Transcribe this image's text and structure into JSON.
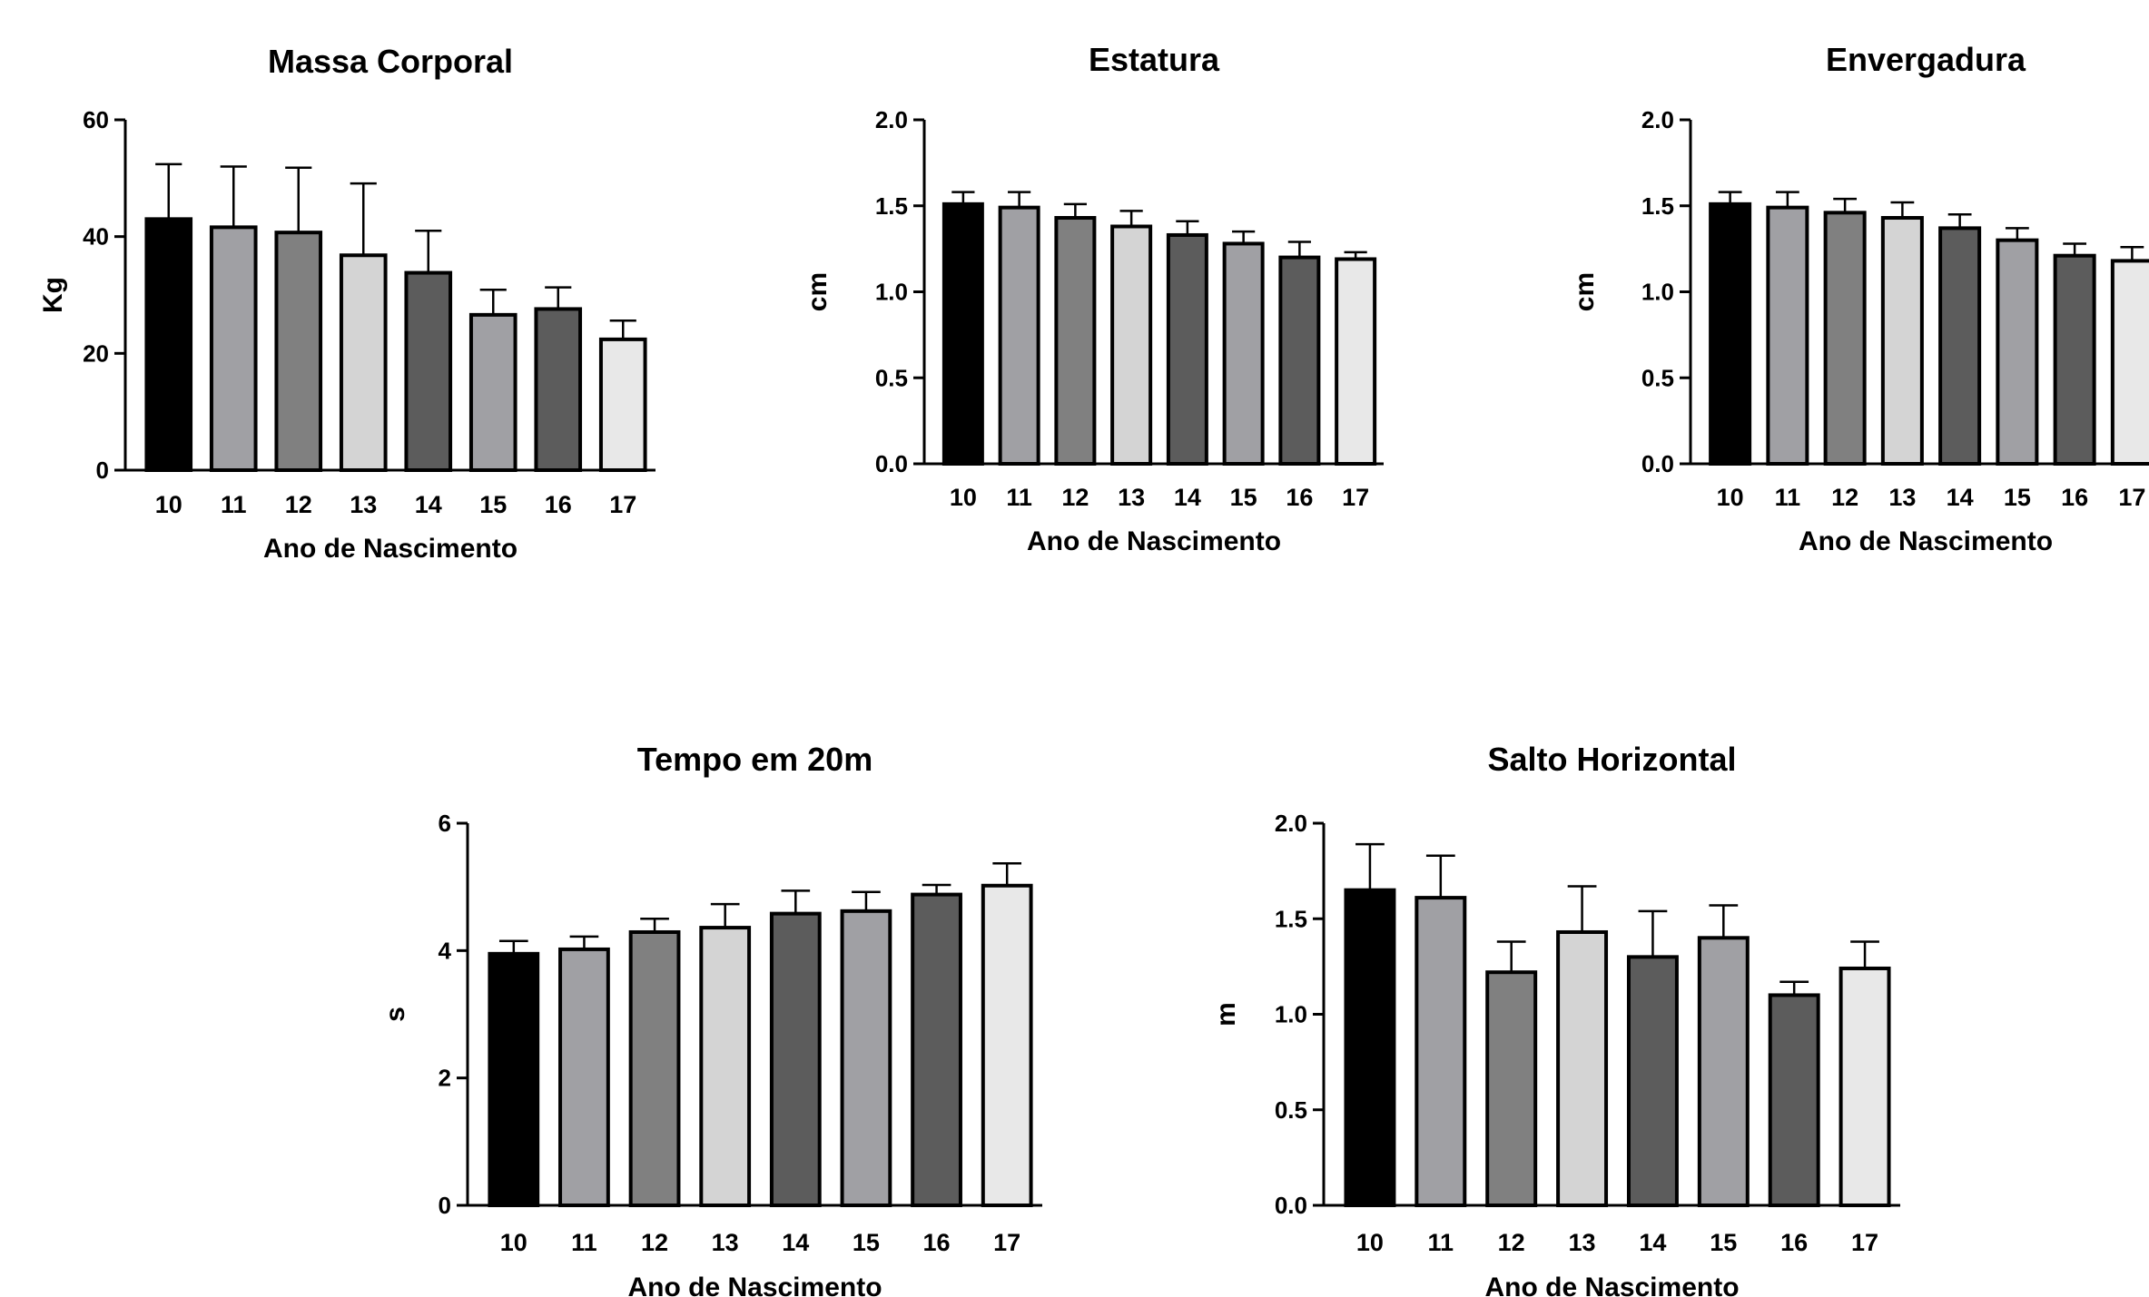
{
  "chart_data": [
    {
      "type": "bar",
      "title": "Massa Corporal",
      "xlabel": "Ano de Nascimento",
      "ylabel": "Kg",
      "ylim": [
        0,
        60
      ],
      "yticks": [
        "0",
        "20",
        "40",
        "60"
      ],
      "categories": [
        "10",
        "11",
        "12",
        "13",
        "14",
        "15",
        "16",
        "17"
      ],
      "values": [
        43,
        41.6,
        40.7,
        36.8,
        33.8,
        26.6,
        27.6,
        22.4
      ],
      "errors": [
        9.4,
        10.4,
        11.1,
        12.3,
        7.2,
        4.3,
        3.7,
        3.2
      ],
      "fills": [
        "#000000",
        "#a0a0a4",
        "#808080",
        "#d4d4d4",
        "#5c5c5c",
        "#a0a0a4",
        "#5c5c5c",
        "#e8e8e8"
      ]
    },
    {
      "type": "bar",
      "title": "Estatura",
      "xlabel": "Ano de Nascimento",
      "ylabel": "cm",
      "ylim": [
        0,
        2.0
      ],
      "yticks": [
        "0.0",
        "0.5",
        "1.0",
        "1.5",
        "2.0"
      ],
      "categories": [
        "10",
        "11",
        "12",
        "13",
        "14",
        "15",
        "16",
        "17"
      ],
      "values": [
        1.51,
        1.49,
        1.43,
        1.38,
        1.33,
        1.28,
        1.2,
        1.19
      ],
      "errors": [
        0.07,
        0.09,
        0.08,
        0.09,
        0.08,
        0.07,
        0.09,
        0.04
      ],
      "fills": [
        "#000000",
        "#a0a0a4",
        "#808080",
        "#d4d4d4",
        "#5c5c5c",
        "#a0a0a4",
        "#5c5c5c",
        "#e8e8e8"
      ]
    },
    {
      "type": "bar",
      "title": "Envergadura",
      "xlabel": "Ano de Nascimento",
      "ylabel": "cm",
      "ylim": [
        0,
        2.0
      ],
      "yticks": [
        "0.0",
        "0.5",
        "1.0",
        "1.5",
        "2.0"
      ],
      "categories": [
        "10",
        "11",
        "12",
        "13",
        "14",
        "15",
        "16",
        "17"
      ],
      "values": [
        1.51,
        1.49,
        1.46,
        1.43,
        1.37,
        1.3,
        1.21,
        1.18
      ],
      "errors": [
        0.07,
        0.09,
        0.08,
        0.09,
        0.08,
        0.07,
        0.07,
        0.08
      ],
      "fills": [
        "#000000",
        "#a0a0a4",
        "#808080",
        "#d4d4d4",
        "#5c5c5c",
        "#a0a0a4",
        "#5c5c5c",
        "#e8e8e8"
      ]
    },
    {
      "type": "bar",
      "title": "Tempo em 20m",
      "xlabel": "Ano de Nascimento",
      "ylabel": "s",
      "ylim": [
        0,
        6
      ],
      "yticks": [
        "0",
        "2",
        "4",
        "6"
      ],
      "categories": [
        "10",
        "11",
        "12",
        "13",
        "14",
        "15",
        "16",
        "17"
      ],
      "values": [
        3.95,
        4.02,
        4.29,
        4.36,
        4.58,
        4.62,
        4.88,
        5.02
      ],
      "errors": [
        0.2,
        0.2,
        0.21,
        0.37,
        0.36,
        0.3,
        0.15,
        0.35
      ],
      "fills": [
        "#000000",
        "#a0a0a4",
        "#808080",
        "#d4d4d4",
        "#5c5c5c",
        "#a0a0a4",
        "#5c5c5c",
        "#e8e8e8"
      ]
    },
    {
      "type": "bar",
      "title": "Salto Horizontal",
      "xlabel": "Ano de Nascimento",
      "ylabel": "m",
      "ylim": [
        0,
        2.0
      ],
      "yticks": [
        "0.0",
        "0.5",
        "1.0",
        "1.5",
        "2.0"
      ],
      "categories": [
        "10",
        "11",
        "12",
        "13",
        "14",
        "15",
        "16",
        "17"
      ],
      "values": [
        1.65,
        1.61,
        1.22,
        1.43,
        1.3,
        1.4,
        1.1,
        1.24
      ],
      "errors": [
        0.24,
        0.22,
        0.16,
        0.24,
        0.24,
        0.17,
        0.07,
        0.14
      ],
      "fills": [
        "#000000",
        "#a0a0a4",
        "#808080",
        "#d4d4d4",
        "#5c5c5c",
        "#a0a0a4",
        "#5c5c5c",
        "#e8e8e8"
      ]
    }
  ]
}
